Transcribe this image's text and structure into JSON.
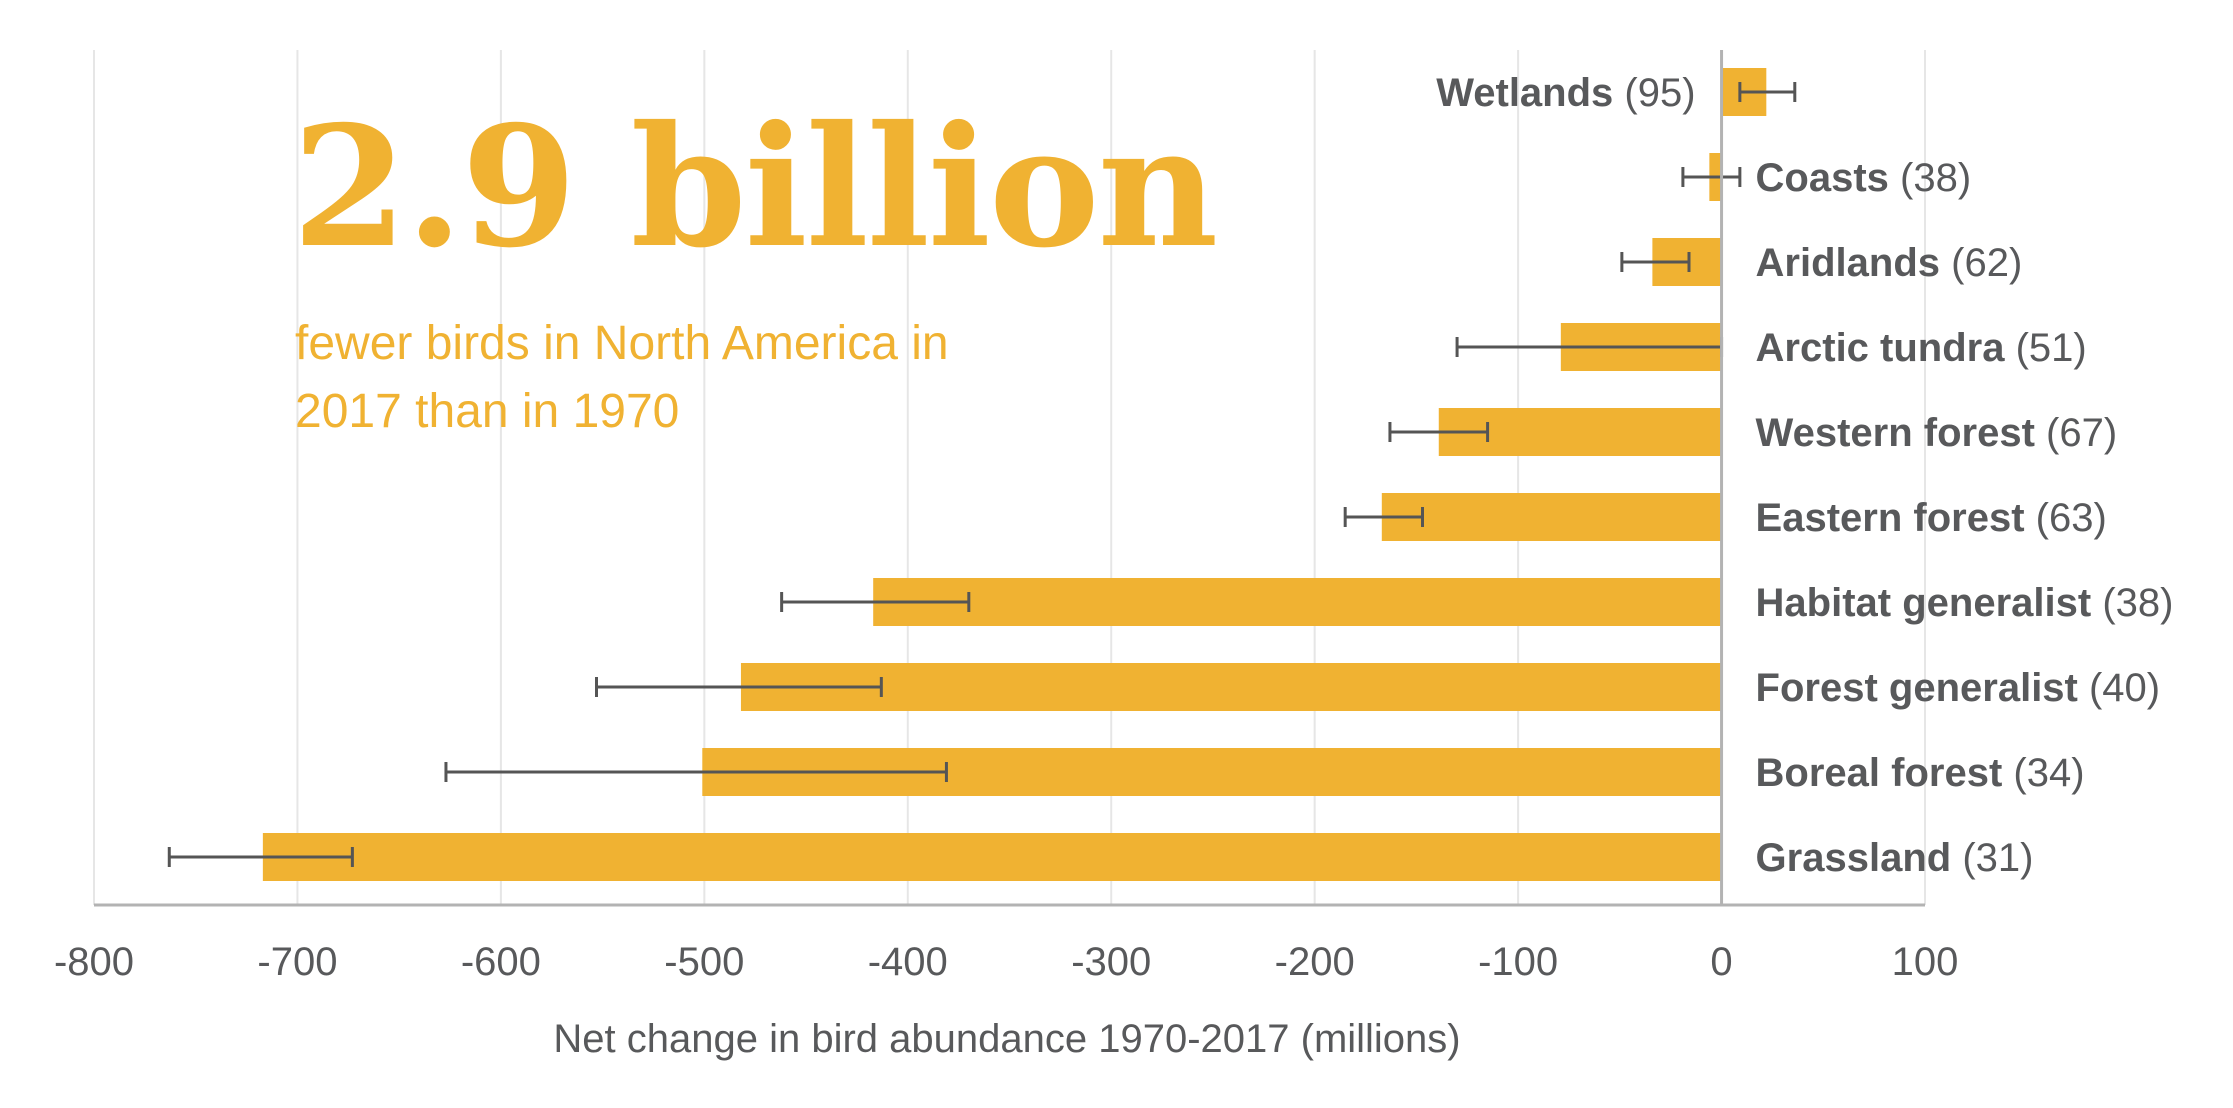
{
  "headline": "2.9 billion",
  "subheadline": "fewer birds in North America in 2017 than in 1970",
  "colors": {
    "bar": "#F0B232",
    "text": "#58595b",
    "grid": "#e6e6e6",
    "axis": "#b3b3b3",
    "errorbar": "#555555"
  },
  "chart_data": {
    "type": "bar",
    "orientation": "horizontal",
    "xlabel": "Net change in bird abundance 1970-2017 (millions)",
    "xlim": [
      -800,
      100
    ],
    "xticks": [
      -800,
      -700,
      -600,
      -500,
      -400,
      -300,
      -200,
      -100,
      0,
      100
    ],
    "grid": true,
    "categories": [
      {
        "name": "Wetlands",
        "n": "(95)",
        "value": 22,
        "err_low": 9,
        "err_high": 36
      },
      {
        "name": "Coasts",
        "n": "(38)",
        "value": -6,
        "err_low": -19,
        "err_high": 9
      },
      {
        "name": "Aridlands",
        "n": "(62)",
        "value": -34,
        "err_low": -49,
        "err_high": -16
      },
      {
        "name": "Arctic tundra",
        "n": "(51)",
        "value": -79,
        "err_low": -130,
        "err_high": 0
      },
      {
        "name": "Western forest",
        "n": "(67)",
        "value": -139,
        "err_low": -163,
        "err_high": -115
      },
      {
        "name": "Eastern forest",
        "n": "(63)",
        "value": -167,
        "err_low": -185,
        "err_high": -147
      },
      {
        "name": "Habitat generalist",
        "n": "(38)",
        "value": -417,
        "err_low": -462,
        "err_high": -370
      },
      {
        "name": "Forest generalist",
        "n": "(40)",
        "value": -482,
        "err_low": -553,
        "err_high": -413
      },
      {
        "name": "Boreal forest",
        "n": "(34)",
        "value": -501,
        "err_low": -627,
        "err_high": -381
      },
      {
        "name": "Grassland",
        "n": "(31)",
        "value": -717,
        "err_low": -763,
        "err_high": -673
      }
    ]
  }
}
